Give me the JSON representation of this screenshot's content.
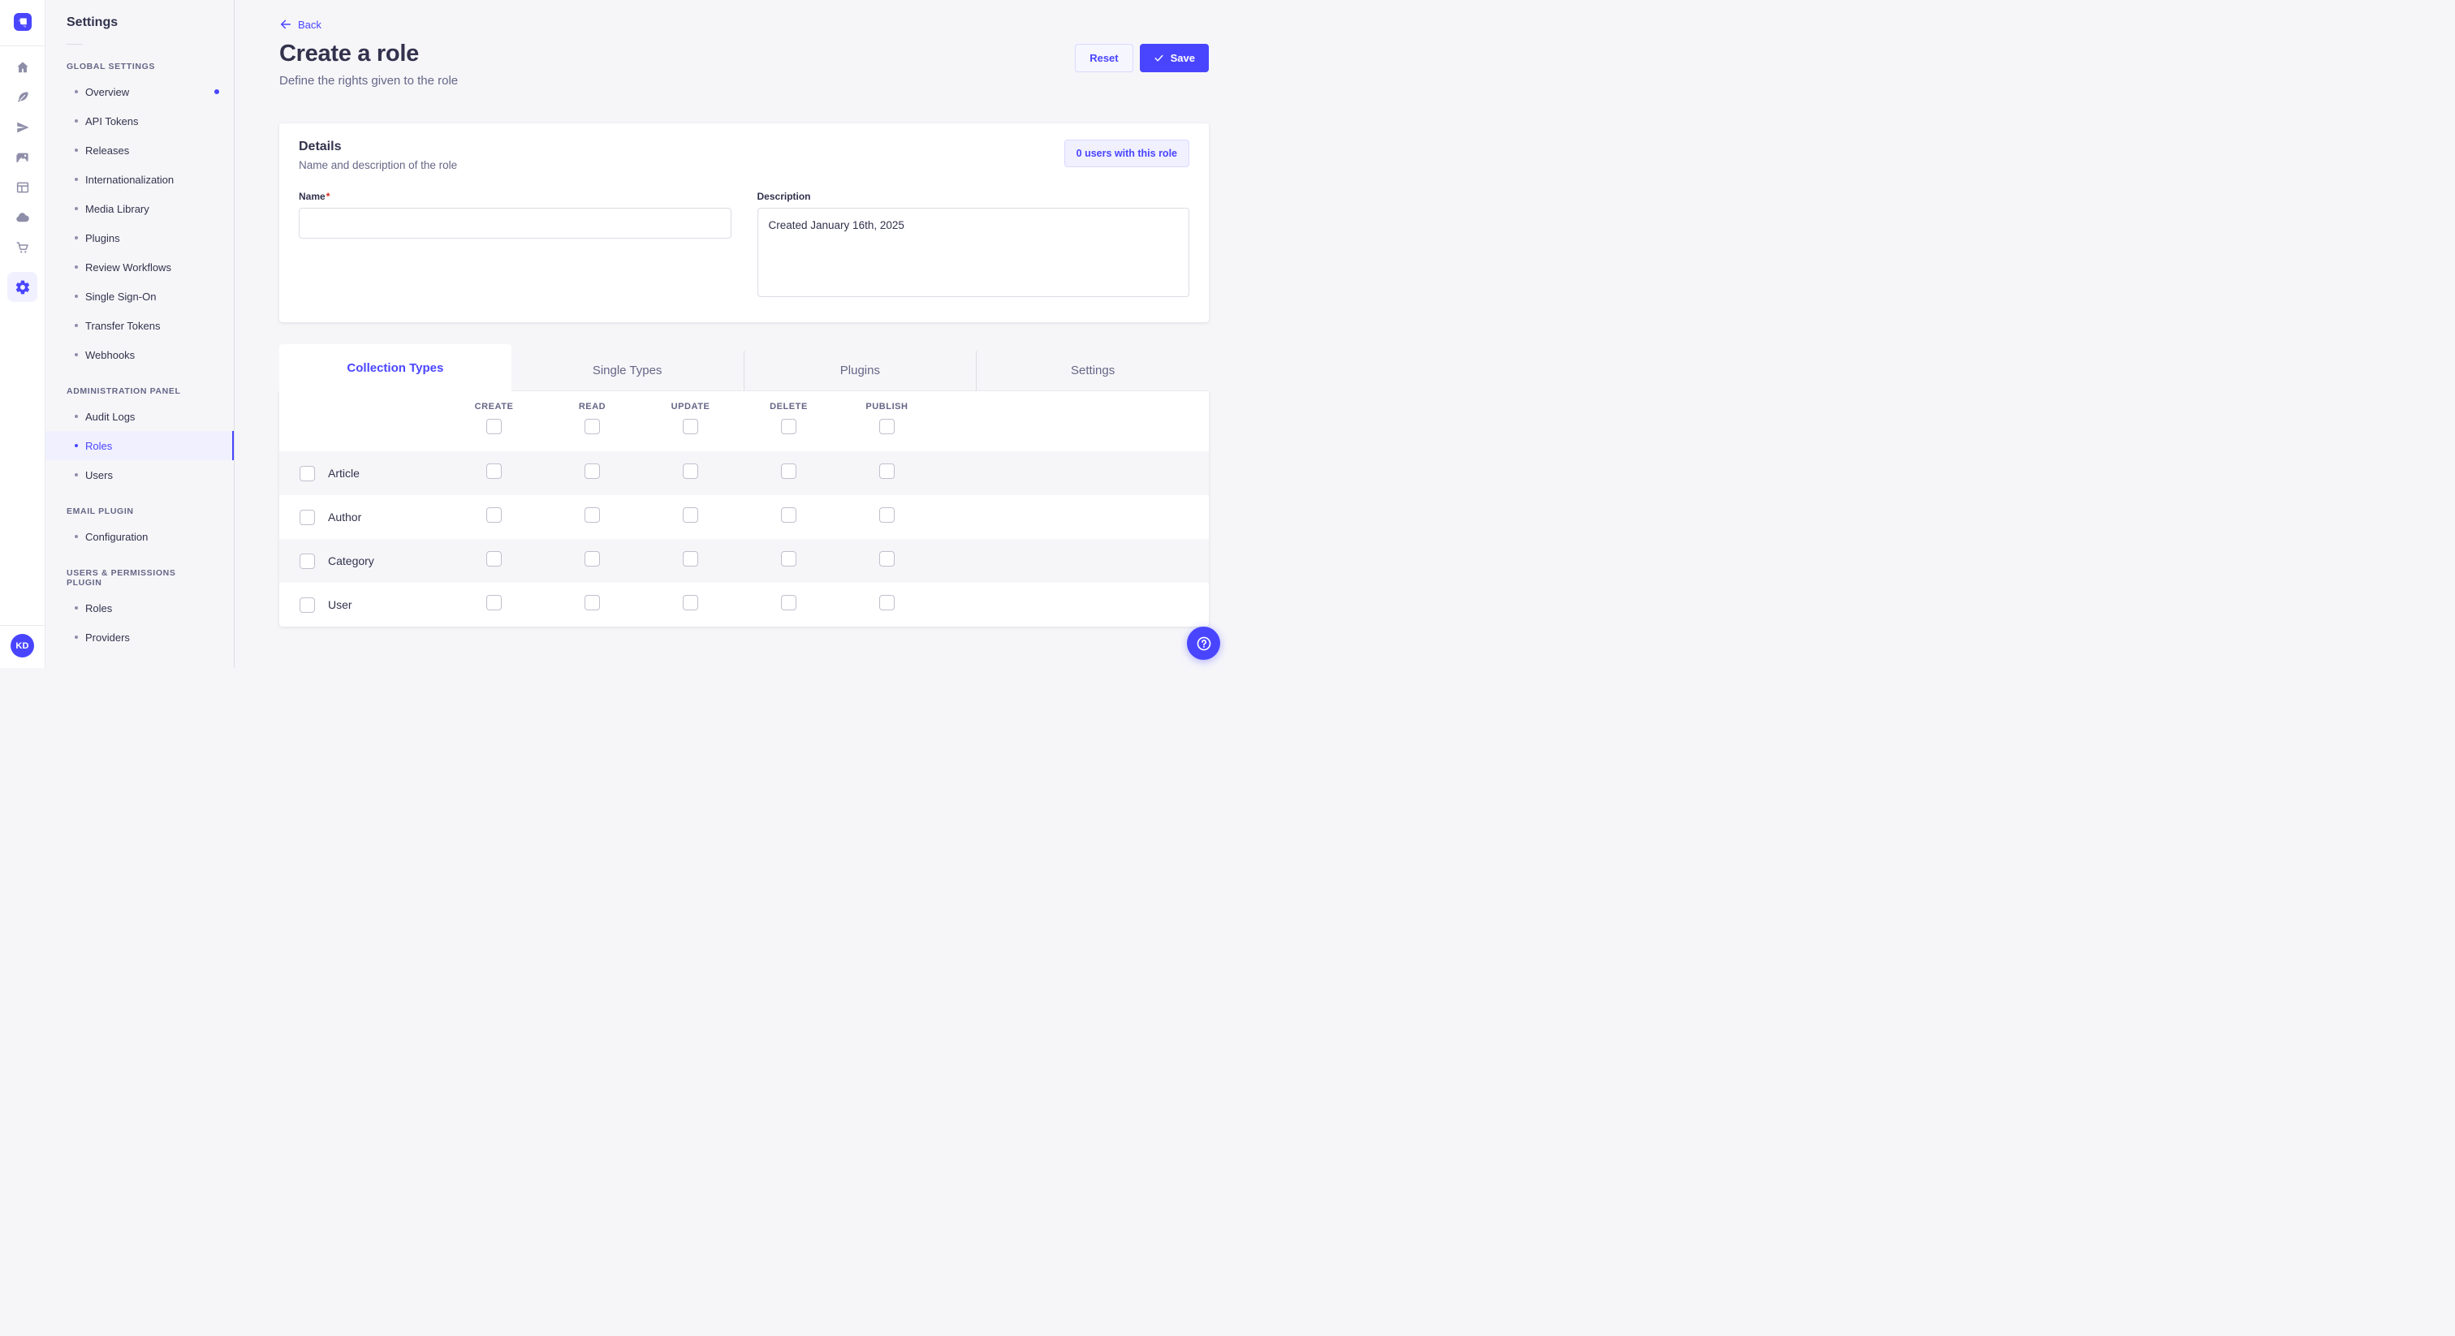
{
  "app": {
    "avatar_initials": "KD"
  },
  "colors": {
    "accent": "#4945ff",
    "accent_light_bg": "#f0f0ff",
    "accent_border": "#d9d8ff",
    "text_dark": "#32324d",
    "text_gray": "#666687",
    "page_bg": "#f6f6f9",
    "required_red": "#d02b20"
  },
  "sidebar": {
    "title": "Settings",
    "sections": [
      {
        "label": "GLOBAL SETTINGS",
        "items": [
          {
            "label": "Overview",
            "notification": true
          },
          {
            "label": "API Tokens"
          },
          {
            "label": "Releases"
          },
          {
            "label": "Internationalization"
          },
          {
            "label": "Media Library"
          },
          {
            "label": "Plugins"
          },
          {
            "label": "Review Workflows"
          },
          {
            "label": "Single Sign-On"
          },
          {
            "label": "Transfer Tokens"
          },
          {
            "label": "Webhooks"
          }
        ]
      },
      {
        "label": "ADMINISTRATION PANEL",
        "items": [
          {
            "label": "Audit Logs"
          },
          {
            "label": "Roles",
            "active": true
          },
          {
            "label": "Users"
          }
        ]
      },
      {
        "label": "EMAIL PLUGIN",
        "items": [
          {
            "label": "Configuration"
          }
        ]
      },
      {
        "label": "USERS & PERMISSIONS PLUGIN",
        "items": [
          {
            "label": "Roles"
          },
          {
            "label": "Providers"
          }
        ]
      }
    ]
  },
  "header": {
    "back_label": "Back",
    "title": "Create a role",
    "subtitle": "Define the rights given to the role",
    "reset_label": "Reset",
    "save_label": "Save"
  },
  "details": {
    "title": "Details",
    "subtitle": "Name and description of the role",
    "users_badge": "0 users with this role",
    "name_label": "Name",
    "name_required": "*",
    "name_value": "",
    "description_label": "Description",
    "description_value": "Created January 16th, 2025"
  },
  "tabs": [
    {
      "label": "Collection Types",
      "active": true
    },
    {
      "label": "Single Types"
    },
    {
      "label": "Plugins"
    },
    {
      "label": "Settings"
    }
  ],
  "permissions": {
    "columns": [
      "CREATE",
      "READ",
      "UPDATE",
      "DELETE",
      "PUBLISH"
    ],
    "rows": [
      {
        "label": "Article"
      },
      {
        "label": "Author"
      },
      {
        "label": "Category"
      },
      {
        "label": "User"
      }
    ]
  }
}
